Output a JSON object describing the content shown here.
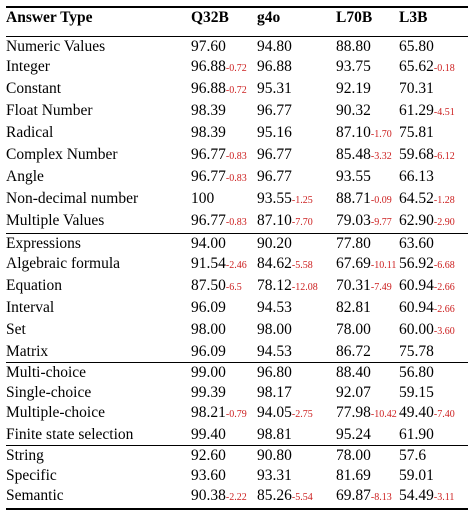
{
  "header": [
    "Answer Type",
    "Q32B",
    "g4o",
    "L70B",
    "L3B"
  ],
  "groups": [
    {
      "label": "Numeric Values",
      "values": [
        [
          "97.60",
          ""
        ],
        [
          "94.80",
          ""
        ],
        [
          "88.80",
          ""
        ],
        [
          "65.80",
          ""
        ]
      ],
      "rows": [
        {
          "label": "Integer",
          "values": [
            [
              "96.88",
              "-0.72"
            ],
            [
              "96.88",
              ""
            ],
            [
              "93.75",
              ""
            ],
            [
              "65.62",
              "-0.18"
            ]
          ]
        },
        {
          "label": "Constant",
          "values": [
            [
              "96.88",
              "-0.72"
            ],
            [
              "95.31",
              ""
            ],
            [
              "92.19",
              ""
            ],
            [
              "70.31",
              ""
            ]
          ]
        },
        {
          "label": "Float Number",
          "values": [
            [
              "98.39",
              ""
            ],
            [
              "96.77",
              ""
            ],
            [
              "90.32",
              ""
            ],
            [
              "61.29",
              "-4.51"
            ]
          ]
        },
        {
          "label": "Radical",
          "values": [
            [
              "98.39",
              ""
            ],
            [
              "95.16",
              ""
            ],
            [
              "87.10",
              "-1.70"
            ],
            [
              "75.81",
              ""
            ]
          ]
        },
        {
          "label": "Complex Number",
          "values": [
            [
              "96.77",
              "-0.83"
            ],
            [
              "96.77",
              ""
            ],
            [
              "85.48",
              "-3.32"
            ],
            [
              "59.68",
              "-6.12"
            ]
          ]
        },
        {
          "label": "Angle",
          "values": [
            [
              "96.77",
              "-0.83"
            ],
            [
              "96.77",
              ""
            ],
            [
              "93.55",
              ""
            ],
            [
              "66.13",
              ""
            ]
          ]
        },
        {
          "label": "Non-decimal number",
          "values": [
            [
              "100",
              ""
            ],
            [
              "93.55",
              "-1.25"
            ],
            [
              "88.71",
              "-0.09"
            ],
            [
              "64.52",
              "-1.28"
            ]
          ]
        },
        {
          "label": "Multiple Values",
          "values": [
            [
              "96.77",
              "-0.83"
            ],
            [
              "87.10",
              "-7.70"
            ],
            [
              "79.03",
              "-9.77"
            ],
            [
              "62.90",
              "-2.90"
            ]
          ]
        }
      ]
    },
    {
      "label": "Expressions",
      "values": [
        [
          "94.00",
          ""
        ],
        [
          "90.20",
          ""
        ],
        [
          "77.80",
          ""
        ],
        [
          "63.60",
          ""
        ]
      ],
      "rows": [
        {
          "label": "Algebraic formula",
          "values": [
            [
              "91.54",
              "-2.46"
            ],
            [
              "84.62",
              "-5.58"
            ],
            [
              "67.69",
              "-10.11"
            ],
            [
              "56.92",
              "-6.68"
            ]
          ]
        },
        {
          "label": "Equation",
          "values": [
            [
              "87.50",
              "-6.5"
            ],
            [
              "78.12",
              "-12.08"
            ],
            [
              "70.31",
              "-7.49"
            ],
            [
              "60.94",
              "-2.66"
            ]
          ]
        },
        {
          "label": "Interval",
          "values": [
            [
              "96.09",
              ""
            ],
            [
              "94.53",
              ""
            ],
            [
              "82.81",
              ""
            ],
            [
              "60.94",
              "-2.66"
            ]
          ]
        },
        {
          "label": "Set",
          "values": [
            [
              "98.00",
              ""
            ],
            [
              "98.00",
              ""
            ],
            [
              "78.00",
              ""
            ],
            [
              "60.00",
              "-3.60"
            ]
          ]
        },
        {
          "label": "Matrix",
          "values": [
            [
              "96.09",
              ""
            ],
            [
              "94.53",
              ""
            ],
            [
              "86.72",
              ""
            ],
            [
              "75.78",
              ""
            ]
          ]
        }
      ]
    },
    {
      "label": "Multi-choice",
      "values": [
        [
          "99.00",
          ""
        ],
        [
          "96.80",
          ""
        ],
        [
          "88.40",
          ""
        ],
        [
          "56.80",
          ""
        ]
      ],
      "rows": [
        {
          "label": "Single-choice",
          "values": [
            [
              "99.39",
              ""
            ],
            [
              "98.17",
              ""
            ],
            [
              "92.07",
              ""
            ],
            [
              "59.15",
              ""
            ]
          ]
        },
        {
          "label": "Multiple-choice",
          "values": [
            [
              "98.21",
              "-0.79"
            ],
            [
              "94.05",
              "-2.75"
            ],
            [
              "77.98",
              "-10.42"
            ],
            [
              "49.40",
              "-7.40"
            ]
          ]
        },
        {
          "label": "Finite state selection",
          "values": [
            [
              "99.40",
              ""
            ],
            [
              "98.81",
              ""
            ],
            [
              "95.24",
              ""
            ],
            [
              "61.90",
              ""
            ]
          ]
        }
      ]
    },
    {
      "label": "String",
      "values": [
        [
          "92.60",
          ""
        ],
        [
          "90.80",
          ""
        ],
        [
          "78.00",
          ""
        ],
        [
          "57.6",
          ""
        ]
      ],
      "rows": [
        {
          "label": "Specific",
          "values": [
            [
              "93.60",
              ""
            ],
            [
              "93.31",
              ""
            ],
            [
              "81.69",
              ""
            ],
            [
              "59.01",
              ""
            ]
          ]
        },
        {
          "label": "Semantic",
          "values": [
            [
              "90.38",
              "-2.22"
            ],
            [
              "85.26",
              "-5.54"
            ],
            [
              "69.87",
              "-8.13"
            ],
            [
              "54.49",
              "-3.11"
            ]
          ]
        }
      ]
    }
  ],
  "colors": {
    "delta": "#cc1e1e",
    "text": "#000000",
    "rule": "#000000"
  }
}
